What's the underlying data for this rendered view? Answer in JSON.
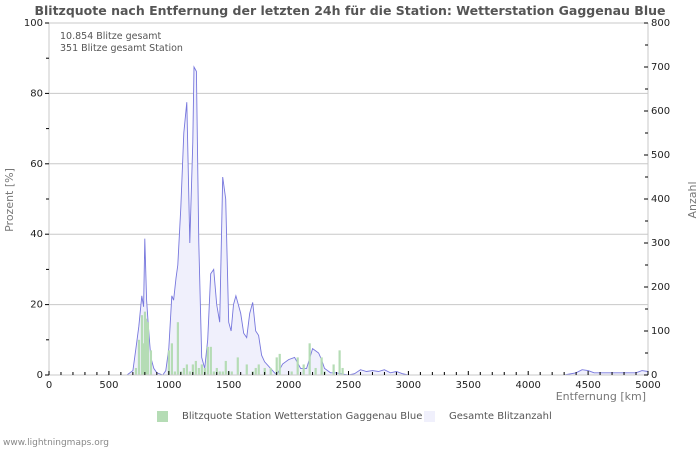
{
  "chart_data": {
    "type": "bar+area",
    "title": "Blitzquote nach Entfernung der letzten 24h für die Station: Wetterstation Gaggenau Blue",
    "info_lines": [
      "10.854 Blitze gesamt",
      "351 Blitze gesamt Station"
    ],
    "xlabel": "Entfernung   [km]",
    "ylabel_left": "Prozent   [%]",
    "ylabel_right": "Anzahl",
    "xlim": [
      0,
      5000
    ],
    "ylim_left": [
      0,
      100
    ],
    "ylim_right": [
      0,
      800
    ],
    "x_ticks": [
      0,
      500,
      1000,
      1500,
      2000,
      2500,
      3000,
      3500,
      4000,
      4500,
      5000
    ],
    "y_ticks_left": [
      0,
      20,
      40,
      60,
      80,
      100
    ],
    "y_ticks_right": [
      0,
      100,
      200,
      300,
      400,
      500,
      600,
      700,
      800
    ],
    "grid": true,
    "legend_position": "bottom",
    "series": [
      {
        "name": "Blitzquote Station Wetterstation Gaggenau Blue",
        "type": "bar",
        "axis": "left",
        "color": "#b5dcb5",
        "x": [
          725,
          750,
          775,
          790,
          800,
          810,
          825,
          850,
          1000,
          1025,
          1050,
          1075,
          1100,
          1125,
          1150,
          1175,
          1200,
          1225,
          1250,
          1275,
          1300,
          1325,
          1350,
          1375,
          1400,
          1425,
          1450,
          1475,
          1500,
          1525,
          1575,
          1650,
          1700,
          1725,
          1750,
          1800,
          1850,
          1900,
          1925,
          2025,
          2075,
          2125,
          2175,
          2225,
          2275,
          2300,
          2375,
          2425,
          2450
        ],
        "values": [
          2,
          10,
          17,
          9,
          18,
          16,
          15,
          7,
          7,
          9,
          1,
          15,
          1,
          2,
          3,
          1,
          3,
          4,
          2,
          3,
          2,
          8,
          8,
          1,
          2,
          1,
          1,
          4,
          1,
          1,
          5,
          3,
          1,
          2,
          3,
          2,
          2,
          5,
          6,
          1,
          5,
          3,
          9,
          2,
          5,
          1,
          3,
          7,
          2
        ]
      },
      {
        "name": "Gesamte Blitzanzahl",
        "type": "area",
        "axis": "right",
        "color": "#f0f0fc",
        "line_color": "#7777dd",
        "x": [
          0,
          650,
          700,
          725,
          750,
          775,
          790,
          800,
          815,
          830,
          850,
          875,
          900,
          950,
          975,
          1000,
          1025,
          1040,
          1060,
          1075,
          1100,
          1125,
          1150,
          1175,
          1200,
          1210,
          1230,
          1250,
          1275,
          1300,
          1325,
          1350,
          1375,
          1400,
          1425,
          1450,
          1475,
          1500,
          1520,
          1540,
          1560,
          1600,
          1625,
          1650,
          1675,
          1700,
          1725,
          1750,
          1775,
          1800,
          1850,
          1900,
          1950,
          2000,
          2050,
          2100,
          2150,
          2200,
          2250,
          2275,
          2300,
          2350,
          2400,
          2450,
          2500,
          2550,
          2600,
          2650,
          2700,
          2750,
          2800,
          2850,
          2900,
          2950,
          3000,
          3500,
          4000,
          4300,
          4400,
          4450,
          4500,
          4550,
          4600,
          4700,
          4800,
          4900,
          4950,
          5000
        ],
        "values": [
          0,
          0,
          10,
          60,
          110,
          180,
          155,
          310,
          170,
          110,
          40,
          15,
          5,
          0,
          10,
          60,
          180,
          170,
          220,
          250,
          380,
          550,
          620,
          300,
          530,
          700,
          690,
          300,
          40,
          15,
          80,
          230,
          240,
          160,
          120,
          450,
          400,
          120,
          100,
          160,
          180,
          140,
          95,
          85,
          140,
          165,
          100,
          90,
          45,
          30,
          15,
          0,
          25,
          35,
          40,
          15,
          15,
          60,
          50,
          35,
          15,
          5,
          5,
          2,
          0,
          3,
          12,
          8,
          10,
          8,
          12,
          5,
          8,
          3,
          0,
          0,
          0,
          0,
          5,
          12,
          10,
          5,
          5,
          5,
          5,
          5,
          10,
          8
        ]
      }
    ]
  },
  "legend": {
    "items": [
      {
        "label": "Blitzquote Station Wetterstation Gaggenau Blue",
        "color": "#b5dcb5"
      },
      {
        "label": "Gesamte Blitzanzahl",
        "color": "#f0f0fc"
      }
    ]
  },
  "footer": {
    "text": "www.lightningmaps.org"
  }
}
